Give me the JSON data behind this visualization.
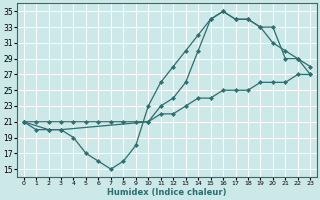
{
  "xlabel": "Humidex (Indice chaleur)",
  "xlim": [
    -0.5,
    23.5
  ],
  "ylim": [
    14,
    36
  ],
  "yticks": [
    15,
    17,
    19,
    21,
    23,
    25,
    27,
    29,
    31,
    33,
    35
  ],
  "xticks": [
    0,
    1,
    2,
    3,
    4,
    5,
    6,
    7,
    8,
    9,
    10,
    11,
    12,
    13,
    14,
    15,
    16,
    17,
    18,
    19,
    20,
    21,
    22,
    23
  ],
  "bg_color": "#cce8e8",
  "grid_color": "#aacccc",
  "line_color": "#2d6e6e",
  "line1_x": [
    0,
    1,
    2,
    3,
    4,
    5,
    6,
    7,
    8,
    9,
    10,
    11,
    12,
    13,
    14,
    15,
    16,
    17,
    18,
    19,
    20,
    21,
    22,
    23
  ],
  "line1_y": [
    21,
    21,
    21,
    21,
    21,
    21,
    21,
    21,
    21,
    21,
    21,
    22,
    22,
    23,
    24,
    24,
    25,
    25,
    25,
    26,
    26,
    26,
    27,
    27
  ],
  "line2_x": [
    0,
    1,
    2,
    3,
    4,
    5,
    6,
    7,
    8,
    9,
    10,
    11,
    12,
    13,
    14,
    15,
    16,
    17,
    18,
    19,
    20,
    21,
    22,
    23
  ],
  "line2_y": [
    21,
    20,
    20,
    20,
    19,
    17,
    16,
    15,
    16,
    18,
    23,
    26,
    28,
    30,
    32,
    34,
    35,
    34,
    34,
    33,
    33,
    29,
    29,
    27
  ],
  "line3_x": [
    0,
    2,
    3,
    10,
    11,
    12,
    13,
    14,
    15,
    16,
    17,
    18,
    19,
    20,
    21,
    22,
    23
  ],
  "line3_y": [
    21,
    20,
    20,
    21,
    23,
    24,
    26,
    30,
    34,
    35,
    34,
    34,
    33,
    31,
    30,
    29,
    28
  ]
}
